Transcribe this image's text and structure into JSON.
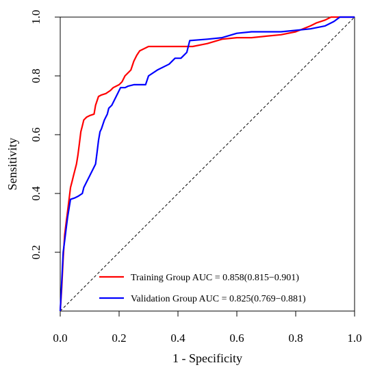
{
  "chart_data": {
    "type": "line",
    "xlabel": "1 - Specificity",
    "ylabel": "Sensitivity",
    "xlim": [
      0,
      1
    ],
    "ylim": [
      0,
      1
    ],
    "x_ticks": [
      "0.0",
      "0.2",
      "0.4",
      "0.6",
      "0.8",
      "1.0"
    ],
    "y_ticks": [
      "0.2",
      "0.4",
      "0.6",
      "0.8",
      "1.0"
    ],
    "grid": false,
    "legend_position": "bottom-right",
    "diagonal_reference": true,
    "series": [
      {
        "name": "Training Group AUC = 0.858(0.815−0.901)",
        "color": "#ff0000",
        "points": [
          [
            0,
            0
          ],
          [
            0.005,
            0.08
          ],
          [
            0.01,
            0.18
          ],
          [
            0.015,
            0.26
          ],
          [
            0.02,
            0.3
          ],
          [
            0.025,
            0.34
          ],
          [
            0.03,
            0.38
          ],
          [
            0.035,
            0.42
          ],
          [
            0.04,
            0.44
          ],
          [
            0.045,
            0.46
          ],
          [
            0.05,
            0.48
          ],
          [
            0.055,
            0.5
          ],
          [
            0.06,
            0.53
          ],
          [
            0.065,
            0.57
          ],
          [
            0.07,
            0.61
          ],
          [
            0.075,
            0.63
          ],
          [
            0.08,
            0.65
          ],
          [
            0.09,
            0.66
          ],
          [
            0.1,
            0.665
          ],
          [
            0.115,
            0.67
          ],
          [
            0.12,
            0.7
          ],
          [
            0.13,
            0.73
          ],
          [
            0.14,
            0.735
          ],
          [
            0.155,
            0.74
          ],
          [
            0.17,
            0.75
          ],
          [
            0.18,
            0.76
          ],
          [
            0.2,
            0.77
          ],
          [
            0.21,
            0.78
          ],
          [
            0.22,
            0.8
          ],
          [
            0.24,
            0.82
          ],
          [
            0.25,
            0.85
          ],
          [
            0.26,
            0.87
          ],
          [
            0.27,
            0.885
          ],
          [
            0.28,
            0.89
          ],
          [
            0.3,
            0.9
          ],
          [
            0.35,
            0.9
          ],
          [
            0.4,
            0.9
          ],
          [
            0.45,
            0.9
          ],
          [
            0.5,
            0.91
          ],
          [
            0.55,
            0.925
          ],
          [
            0.6,
            0.93
          ],
          [
            0.65,
            0.93
          ],
          [
            0.7,
            0.935
          ],
          [
            0.75,
            0.94
          ],
          [
            0.8,
            0.95
          ],
          [
            0.85,
            0.97
          ],
          [
            0.87,
            0.98
          ],
          [
            0.9,
            0.99
          ],
          [
            0.92,
            1.0
          ],
          [
            1.0,
            1.0
          ]
        ]
      },
      {
        "name": "Validation Group AUC = 0.825(0.769−0.881)",
        "color": "#0000ff",
        "points": [
          [
            0,
            0
          ],
          [
            0.005,
            0.1
          ],
          [
            0.01,
            0.2
          ],
          [
            0.015,
            0.24
          ],
          [
            0.02,
            0.28
          ],
          [
            0.025,
            0.32
          ],
          [
            0.03,
            0.35
          ],
          [
            0.035,
            0.38
          ],
          [
            0.05,
            0.385
          ],
          [
            0.06,
            0.39
          ],
          [
            0.075,
            0.4
          ],
          [
            0.08,
            0.42
          ],
          [
            0.09,
            0.44
          ],
          [
            0.1,
            0.46
          ],
          [
            0.11,
            0.48
          ],
          [
            0.12,
            0.5
          ],
          [
            0.125,
            0.54
          ],
          [
            0.13,
            0.58
          ],
          [
            0.135,
            0.61
          ],
          [
            0.14,
            0.62
          ],
          [
            0.15,
            0.65
          ],
          [
            0.16,
            0.67
          ],
          [
            0.165,
            0.69
          ],
          [
            0.175,
            0.7
          ],
          [
            0.185,
            0.72
          ],
          [
            0.195,
            0.74
          ],
          [
            0.205,
            0.76
          ],
          [
            0.22,
            0.76
          ],
          [
            0.23,
            0.765
          ],
          [
            0.25,
            0.77
          ],
          [
            0.27,
            0.77
          ],
          [
            0.29,
            0.77
          ],
          [
            0.3,
            0.8
          ],
          [
            0.33,
            0.82
          ],
          [
            0.37,
            0.84
          ],
          [
            0.39,
            0.86
          ],
          [
            0.41,
            0.86
          ],
          [
            0.43,
            0.88
          ],
          [
            0.44,
            0.92
          ],
          [
            0.5,
            0.925
          ],
          [
            0.55,
            0.93
          ],
          [
            0.6,
            0.945
          ],
          [
            0.65,
            0.95
          ],
          [
            0.7,
            0.95
          ],
          [
            0.75,
            0.95
          ],
          [
            0.8,
            0.955
          ],
          [
            0.85,
            0.96
          ],
          [
            0.9,
            0.97
          ],
          [
            0.93,
            0.985
          ],
          [
            0.95,
            1.0
          ],
          [
            1.0,
            1.0
          ]
        ]
      }
    ]
  }
}
